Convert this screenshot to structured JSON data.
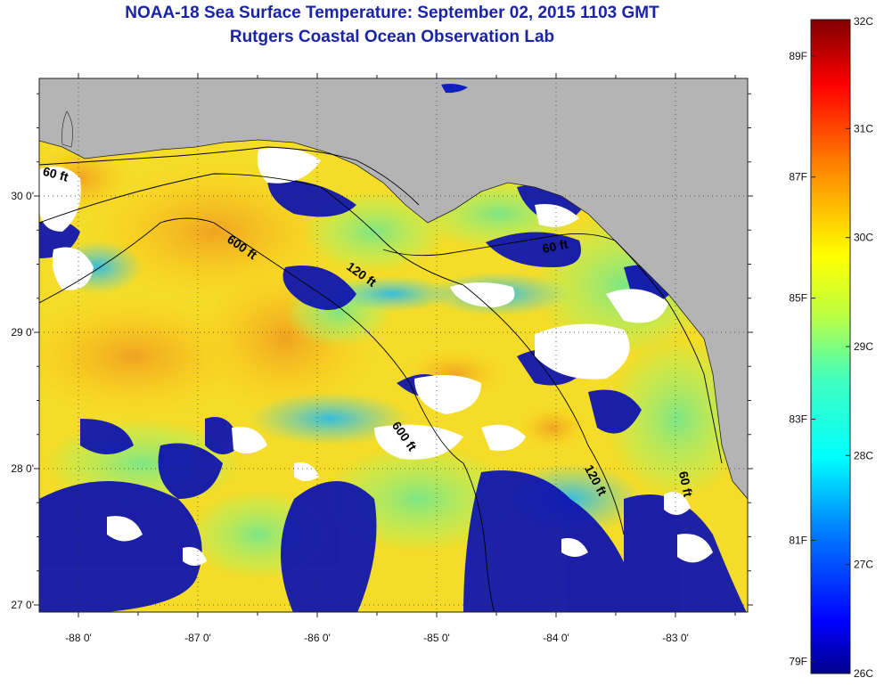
{
  "title": {
    "line1": "NOAA-18 Sea Surface Temperature:  September 02, 2015 1103 GMT",
    "line2": "Rutgers Coastal Ocean Observation Lab"
  },
  "map": {
    "lon_range": [
      -88.35,
      -82.45
    ],
    "lat_range": [
      26.92,
      30.85
    ],
    "lon_ticks": [
      {
        "value": -88,
        "label": "-88 0'"
      },
      {
        "value": -87,
        "label": "-87 0'"
      },
      {
        "value": -86,
        "label": "-86 0'"
      },
      {
        "value": -85,
        "label": "-85 0'"
      },
      {
        "value": -84,
        "label": "-84 0'"
      },
      {
        "value": -83,
        "label": "-83 0'"
      }
    ],
    "lat_ticks": [
      {
        "value": 30,
        "label": "30 0'"
      },
      {
        "value": 29,
        "label": "29 0'"
      },
      {
        "value": 28,
        "label": "28 0'"
      },
      {
        "value": 27,
        "label": "27 0'"
      }
    ],
    "contour_labels": [
      {
        "text": "60 ft",
        "lon": -88.2,
        "lat": 30.13,
        "rotate": 15
      },
      {
        "text": "600 ft",
        "lon": -86.65,
        "lat": 29.6,
        "rotate": 35
      },
      {
        "text": "120 ft",
        "lon": -85.65,
        "lat": 29.4,
        "rotate": 35
      },
      {
        "text": "60 ft",
        "lon": -84.0,
        "lat": 29.6,
        "rotate": -12
      },
      {
        "text": "600 ft",
        "lon": -85.3,
        "lat": 28.22,
        "rotate": 55
      },
      {
        "text": "120 ft",
        "lon": -83.7,
        "lat": 27.9,
        "rotate": 62
      },
      {
        "text": "60 ft",
        "lon": -82.95,
        "lat": 27.88,
        "rotate": 78
      }
    ]
  },
  "colorbar": {
    "min_c": 26,
    "max_c": 32,
    "celsius_labels": [
      {
        "value": 32,
        "label": "32C"
      },
      {
        "value": 31,
        "label": "31C"
      },
      {
        "value": 30,
        "label": "30C"
      },
      {
        "value": 29,
        "label": "29C"
      },
      {
        "value": 28,
        "label": "28C"
      },
      {
        "value": 27,
        "label": "27C"
      },
      {
        "value": 26,
        "label": "26C"
      }
    ],
    "fahrenheit_labels": [
      {
        "value": 89,
        "label": "89F"
      },
      {
        "value": 87,
        "label": "87F"
      },
      {
        "value": 85,
        "label": "85F"
      },
      {
        "value": 83,
        "label": "83F"
      },
      {
        "value": 81,
        "label": "81F"
      },
      {
        "value": 79,
        "label": "79F"
      }
    ]
  },
  "colors": {
    "land": "#b4b4b4",
    "title": "#1a24a8",
    "cloud": "#ffffff",
    "contour": "#000000"
  }
}
